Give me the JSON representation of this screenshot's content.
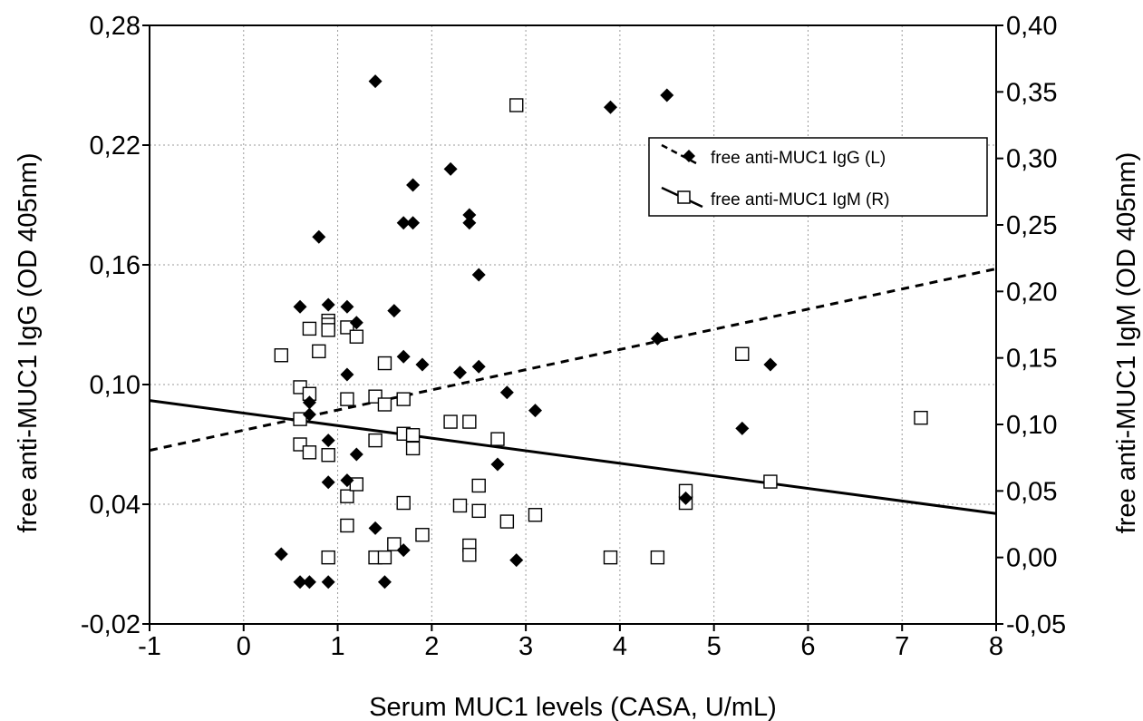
{
  "chart_data": {
    "type": "scatter",
    "xlabel": "Serum MUC1 levels (CASA, U/mL)",
    "ylabel_left": "free anti-MUC1 IgG (OD 405nm)",
    "ylabel_right": "free anti-MUC1 IgM (OD 405nm)",
    "xlim": [
      -1,
      8
    ],
    "ylim_left": [
      -0.02,
      0.28
    ],
    "ylim_right": [
      -0.05,
      0.4
    ],
    "x_ticks": [
      "-1",
      "0",
      "1",
      "2",
      "3",
      "4",
      "5",
      "6",
      "7",
      "8"
    ],
    "y_left_ticks": [
      "-0,02",
      "0,04",
      "0,10",
      "0,16",
      "0,22",
      "0,28"
    ],
    "y_right_ticks": [
      "-0,05",
      "0,00",
      "0,05",
      "0,10",
      "0,15",
      "0,20",
      "0,25",
      "0,30",
      "0,35",
      "0,40"
    ],
    "grid": true,
    "legend_position": "top-right",
    "series": [
      {
        "name": "free anti-MUC1 IgG (L)",
        "axis": "left",
        "marker": "filled-diamond",
        "color": "#000000",
        "fit_line": "dashed",
        "fit": [
          [
            -1,
            0.067
          ],
          [
            8,
            0.158
          ]
        ],
        "points": [
          [
            0.4,
            0.015
          ],
          [
            0.6,
            0.139
          ],
          [
            0.6,
            0.001
          ],
          [
            0.7,
            0.091
          ],
          [
            0.7,
            0.085
          ],
          [
            0.7,
            0.001
          ],
          [
            0.8,
            0.174
          ],
          [
            0.9,
            0.14
          ],
          [
            0.9,
            0.072
          ],
          [
            0.9,
            0.051
          ],
          [
            0.9,
            0.001
          ],
          [
            1.1,
            0.139
          ],
          [
            1.1,
            0.105
          ],
          [
            1.1,
            0.052
          ],
          [
            1.2,
            0.131
          ],
          [
            1.2,
            0.065
          ],
          [
            1.4,
            0.252
          ],
          [
            1.4,
            0.028
          ],
          [
            1.5,
            0.001
          ],
          [
            1.6,
            0.137
          ],
          [
            1.7,
            0.114
          ],
          [
            1.7,
            0.181
          ],
          [
            1.7,
            0.017
          ],
          [
            1.8,
            0.2
          ],
          [
            1.8,
            0.181
          ],
          [
            1.9,
            0.11
          ],
          [
            2.2,
            0.208
          ],
          [
            2.3,
            0.106
          ],
          [
            2.4,
            0.185
          ],
          [
            2.4,
            0.181
          ],
          [
            2.5,
            0.155
          ],
          [
            2.5,
            0.109
          ],
          [
            2.7,
            0.06
          ],
          [
            2.8,
            0.096
          ],
          [
            2.9,
            0.012
          ],
          [
            3.1,
            0.087
          ],
          [
            3.9,
            0.239
          ],
          [
            4.4,
            0.123
          ],
          [
            4.5,
            0.245
          ],
          [
            4.7,
            0.043
          ],
          [
            5.3,
            0.078
          ],
          [
            5.6,
            0.11
          ]
        ]
      },
      {
        "name": "free anti-MUC1 IgM (R)",
        "axis": "right",
        "marker": "open-square",
        "color": "#000000",
        "fit_line": "solid",
        "fit": [
          [
            -1,
            0.118
          ],
          [
            8,
            0.033
          ]
        ],
        "points": [
          [
            0.4,
            0.152
          ],
          [
            0.6,
            0.128
          ],
          [
            0.6,
            0.104
          ],
          [
            0.6,
            0.085
          ],
          [
            0.7,
            0.172
          ],
          [
            0.7,
            0.123
          ],
          [
            0.7,
            0.079
          ],
          [
            0.8,
            0.155
          ],
          [
            0.9,
            0.178
          ],
          [
            0.9,
            0.175
          ],
          [
            0.9,
            0.171
          ],
          [
            0.9,
            0.077
          ],
          [
            0.9,
            0.0
          ],
          [
            1.1,
            0.173
          ],
          [
            1.1,
            0.119
          ],
          [
            1.1,
            0.046
          ],
          [
            1.1,
            0.024
          ],
          [
            1.2,
            0.166
          ],
          [
            1.2,
            0.055
          ],
          [
            1.4,
            0.121
          ],
          [
            1.4,
            0.088
          ],
          [
            1.4,
            0.0
          ],
          [
            1.5,
            0.146
          ],
          [
            1.5,
            0.115
          ],
          [
            1.5,
            0.0
          ],
          [
            1.6,
            0.01
          ],
          [
            1.7,
            0.119
          ],
          [
            1.7,
            0.093
          ],
          [
            1.7,
            0.041
          ],
          [
            1.8,
            0.092
          ],
          [
            1.8,
            0.082
          ],
          [
            1.9,
            0.017
          ],
          [
            2.2,
            0.102
          ],
          [
            2.3,
            0.039
          ],
          [
            2.4,
            0.102
          ],
          [
            2.4,
            0.009
          ],
          [
            2.4,
            0.002
          ],
          [
            2.5,
            0.054
          ],
          [
            2.5,
            0.035
          ],
          [
            2.7,
            0.089
          ],
          [
            2.8,
            0.027
          ],
          [
            2.9,
            0.34
          ],
          [
            3.1,
            0.032
          ],
          [
            3.9,
            0.0
          ],
          [
            4.4,
            0.0
          ],
          [
            4.7,
            0.041
          ],
          [
            4.7,
            0.05
          ],
          [
            5.3,
            0.153
          ],
          [
            5.6,
            0.057
          ],
          [
            7.2,
            0.105
          ]
        ]
      }
    ]
  }
}
